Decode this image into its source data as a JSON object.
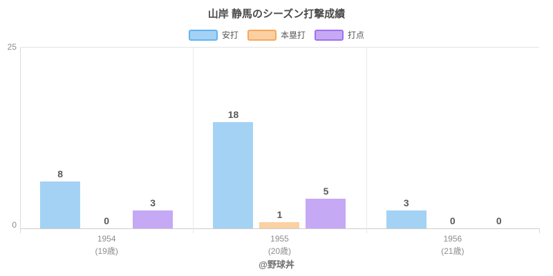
{
  "chart_data": {
    "type": "bar",
    "title": "山岸 静馬のシーズン打撃成績",
    "categories": [
      "1954",
      "1955",
      "1956"
    ],
    "category_sublabels": [
      "(19歳)",
      "(20歳)",
      "(21歳)"
    ],
    "series": [
      {
        "name": "安打",
        "values": [
          8,
          18,
          3
        ],
        "fill": "#a4d2f4",
        "border": "#64b2f0"
      },
      {
        "name": "本塁打",
        "values": [
          0,
          1,
          0
        ],
        "fill": "#fbd0a2",
        "border": "#f9a65a"
      },
      {
        "name": "打点",
        "values": [
          3,
          5,
          0
        ],
        "fill": "#c5a9f4",
        "border": "#9d6ff0"
      }
    ],
    "ylabel": "",
    "xlabel": "",
    "ylim": [
      0,
      25
    ],
    "y_ticks": [
      "25",
      "0"
    ],
    "axis_scale_max": 30.6,
    "grid": "category-separators",
    "legend_position": "top",
    "value_labels": "above-bars"
  },
  "footer": {
    "credit": "@野球丼"
  }
}
